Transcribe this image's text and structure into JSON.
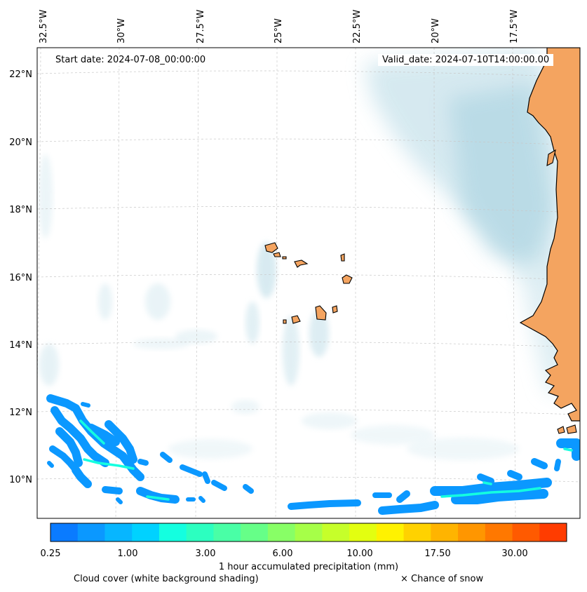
{
  "header": {
    "start_date": "Start date: 2024-07-08_00:00:00",
    "valid_date": "Valid_date: 2024-07-10T14:00:00.00"
  },
  "axes": {
    "lon_labels": [
      "32.5°W",
      "30°W",
      "27.5°W",
      "25°W",
      "22.5°W",
      "20°W",
      "17.5°W"
    ],
    "lat_labels": [
      "22°N",
      "20°N",
      "18°N",
      "16°N",
      "14°N",
      "12°N",
      "10°N"
    ]
  },
  "colorbar": {
    "label": "1 hour accumulated precipitation (mm)",
    "ticks": [
      "0.25",
      "1.00",
      "3.00",
      "6.00",
      "10.00",
      "17.50",
      "30.00"
    ],
    "colors": [
      "#0a7bff",
      "#0b98ff",
      "#07b6ff",
      "#00d2ff",
      "#14ffe0",
      "#2cffc0",
      "#49ffa6",
      "#66ff88",
      "#88ff66",
      "#a6ff48",
      "#c6ff2a",
      "#e3ff10",
      "#fff200",
      "#ffd200",
      "#ffb400",
      "#ff9600",
      "#ff7800",
      "#ff5a00",
      "#ff3c00"
    ]
  },
  "legend": {
    "cloud_cover": "Cloud cover (white background shading)",
    "snow": "× Chance of snow"
  },
  "colors": {
    "land": "#f4a460",
    "cloud": "#cfe6ee",
    "grid": "#c8c8c8",
    "precip_light": "#0b98ff",
    "precip_mid": "#14ffe0"
  }
}
